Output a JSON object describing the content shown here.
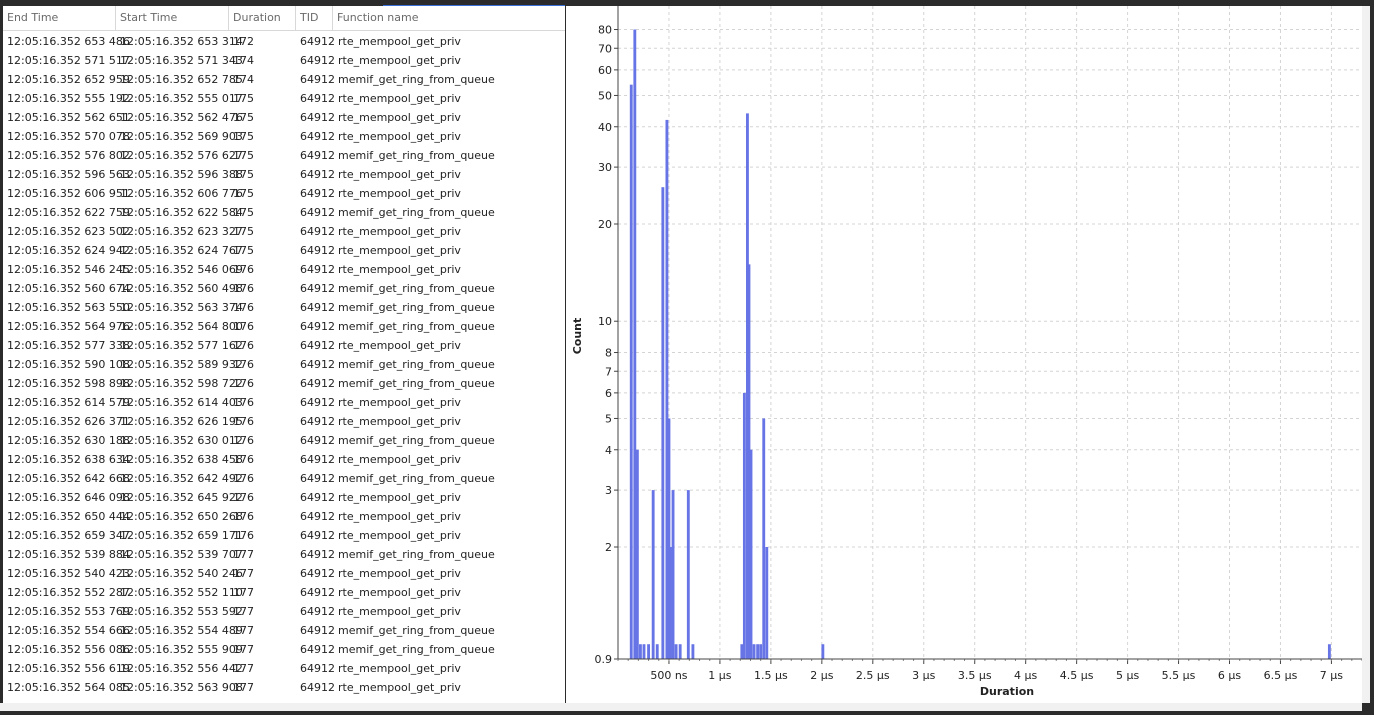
{
  "table": {
    "columns": [
      "End Time",
      "Start Time",
      "Duration",
      "TID",
      "Function name"
    ],
    "rows": [
      [
        "12:05:16.352 653 486",
        "12:05:16.352 653 314",
        "172",
        "64912",
        "rte_mempool_get_priv"
      ],
      [
        "12:05:16.352 571 517",
        "12:05:16.352 571 343",
        "174",
        "64912",
        "rte_mempool_get_priv"
      ],
      [
        "12:05:16.352 652 959",
        "12:05:16.352 652 785",
        "174",
        "64912",
        "memif_get_ring_from_queue"
      ],
      [
        "12:05:16.352 555 192",
        "12:05:16.352 555 017",
        "175",
        "64912",
        "rte_mempool_get_priv"
      ],
      [
        "12:05:16.352 562 651",
        "12:05:16.352 562 476",
        "175",
        "64912",
        "rte_mempool_get_priv"
      ],
      [
        "12:05:16.352 570 078",
        "12:05:16.352 569 903",
        "175",
        "64912",
        "rte_mempool_get_priv"
      ],
      [
        "12:05:16.352 576 802",
        "12:05:16.352 576 627",
        "175",
        "64912",
        "memif_get_ring_from_queue"
      ],
      [
        "12:05:16.352 596 563",
        "12:05:16.352 596 388",
        "175",
        "64912",
        "rte_mempool_get_priv"
      ],
      [
        "12:05:16.352 606 951",
        "12:05:16.352 606 776",
        "175",
        "64912",
        "rte_mempool_get_priv"
      ],
      [
        "12:05:16.352 622 759",
        "12:05:16.352 622 584",
        "175",
        "64912",
        "memif_get_ring_from_queue"
      ],
      [
        "12:05:16.352 623 502",
        "12:05:16.352 623 327",
        "175",
        "64912",
        "rte_mempool_get_priv"
      ],
      [
        "12:05:16.352 624 942",
        "12:05:16.352 624 767",
        "175",
        "64912",
        "rte_mempool_get_priv"
      ],
      [
        "12:05:16.352 546 245",
        "12:05:16.352 546 069",
        "176",
        "64912",
        "rte_mempool_get_priv"
      ],
      [
        "12:05:16.352 560 674",
        "12:05:16.352 560 498",
        "176",
        "64912",
        "memif_get_ring_from_queue"
      ],
      [
        "12:05:16.352 563 550",
        "12:05:16.352 563 374",
        "176",
        "64912",
        "memif_get_ring_from_queue"
      ],
      [
        "12:05:16.352 564 976",
        "12:05:16.352 564 800",
        "176",
        "64912",
        "memif_get_ring_from_queue"
      ],
      [
        "12:05:16.352 577 338",
        "12:05:16.352 577 162",
        "176",
        "64912",
        "rte_mempool_get_priv"
      ],
      [
        "12:05:16.352 590 108",
        "12:05:16.352 589 932",
        "176",
        "64912",
        "memif_get_ring_from_queue"
      ],
      [
        "12:05:16.352 598 898",
        "12:05:16.352 598 722",
        "176",
        "64912",
        "memif_get_ring_from_queue"
      ],
      [
        "12:05:16.352 614 579",
        "12:05:16.352 614 403",
        "176",
        "64912",
        "rte_mempool_get_priv"
      ],
      [
        "12:05:16.352 626 371",
        "12:05:16.352 626 195",
        "176",
        "64912",
        "rte_mempool_get_priv"
      ],
      [
        "12:05:16.352 630 188",
        "12:05:16.352 630 012",
        "176",
        "64912",
        "memif_get_ring_from_queue"
      ],
      [
        "12:05:16.352 638 634",
        "12:05:16.352 638 458",
        "176",
        "64912",
        "rte_mempool_get_priv"
      ],
      [
        "12:05:16.352 642 668",
        "12:05:16.352 642 492",
        "176",
        "64912",
        "memif_get_ring_from_queue"
      ],
      [
        "12:05:16.352 646 098",
        "12:05:16.352 645 922",
        "176",
        "64912",
        "rte_mempool_get_priv"
      ],
      [
        "12:05:16.352 650 444",
        "12:05:16.352 650 268",
        "176",
        "64912",
        "rte_mempool_get_priv"
      ],
      [
        "12:05:16.352 659 347",
        "12:05:16.352 659 171",
        "176",
        "64912",
        "rte_mempool_get_priv"
      ],
      [
        "12:05:16.352 539 884",
        "12:05:16.352 539 707",
        "177",
        "64912",
        "memif_get_ring_from_queue"
      ],
      [
        "12:05:16.352 540 423",
        "12:05:16.352 540 246",
        "177",
        "64912",
        "rte_mempool_get_priv"
      ],
      [
        "12:05:16.352 552 287",
        "12:05:16.352 552 110",
        "177",
        "64912",
        "rte_mempool_get_priv"
      ],
      [
        "12:05:16.352 553 769",
        "12:05:16.352 553 592",
        "177",
        "64912",
        "rte_mempool_get_priv"
      ],
      [
        "12:05:16.352 554 666",
        "12:05:16.352 554 489",
        "177",
        "64912",
        "memif_get_ring_from_queue"
      ],
      [
        "12:05:16.352 556 086",
        "12:05:16.352 555 909",
        "177",
        "64912",
        "memif_get_ring_from_queue"
      ],
      [
        "12:05:16.352 556 619",
        "12:05:16.352 556 442",
        "177",
        "64912",
        "rte_mempool_get_priv"
      ],
      [
        "12:05:16.352 564 085",
        "12:05:16.352 563 908",
        "177",
        "64912",
        "rte_mempool_get_priv"
      ]
    ]
  },
  "chart_data": {
    "type": "bar",
    "title": "",
    "xlabel": "Duration",
    "ylabel": "Count",
    "y_scale": "log",
    "ylim": [
      0.9,
      90
    ],
    "xlim_ns": [
      0,
      7300
    ],
    "grid": true,
    "bar_color": "#6674e6",
    "y_ticks": [
      "0.9",
      "2",
      "3",
      "4",
      "5",
      "6",
      "7",
      "8",
      "10",
      "20",
      "30",
      "40",
      "50",
      "60",
      "70",
      "80"
    ],
    "y_tick_values": [
      0.9,
      2,
      3,
      4,
      5,
      6,
      7,
      8,
      10,
      20,
      30,
      40,
      50,
      60,
      70,
      80
    ],
    "x_ticks": [
      "500 ns",
      "1 µs",
      "1.5 µs",
      "2 µs",
      "2.5 µs",
      "3 µs",
      "3.5 µs",
      "4 µs",
      "4.5 µs",
      "5 µs",
      "5.5 µs",
      "6 µs",
      "6.5 µs",
      "7 µs"
    ],
    "x_tick_values_ns": [
      500,
      1000,
      1500,
      2000,
      2500,
      3000,
      3500,
      4000,
      4500,
      5000,
      5500,
      6000,
      6500,
      7000
    ],
    "bins_ns": [
      130,
      165,
      190,
      220,
      255,
      300,
      345,
      385,
      440,
      480,
      500,
      515,
      540,
      570,
      610,
      690,
      735,
      1215,
      1240,
      1270,
      1285,
      1305,
      1335,
      1370,
      1400,
      1430,
      1460,
      2010,
      6980
    ],
    "counts": [
      54,
      80,
      4,
      1,
      1,
      1,
      3,
      1,
      26,
      42,
      5,
      2,
      3,
      1,
      1,
      3,
      1,
      1,
      6,
      44,
      15,
      4,
      1,
      1,
      1,
      5,
      2,
      1,
      1
    ],
    "bin_width_ns": 28
  }
}
